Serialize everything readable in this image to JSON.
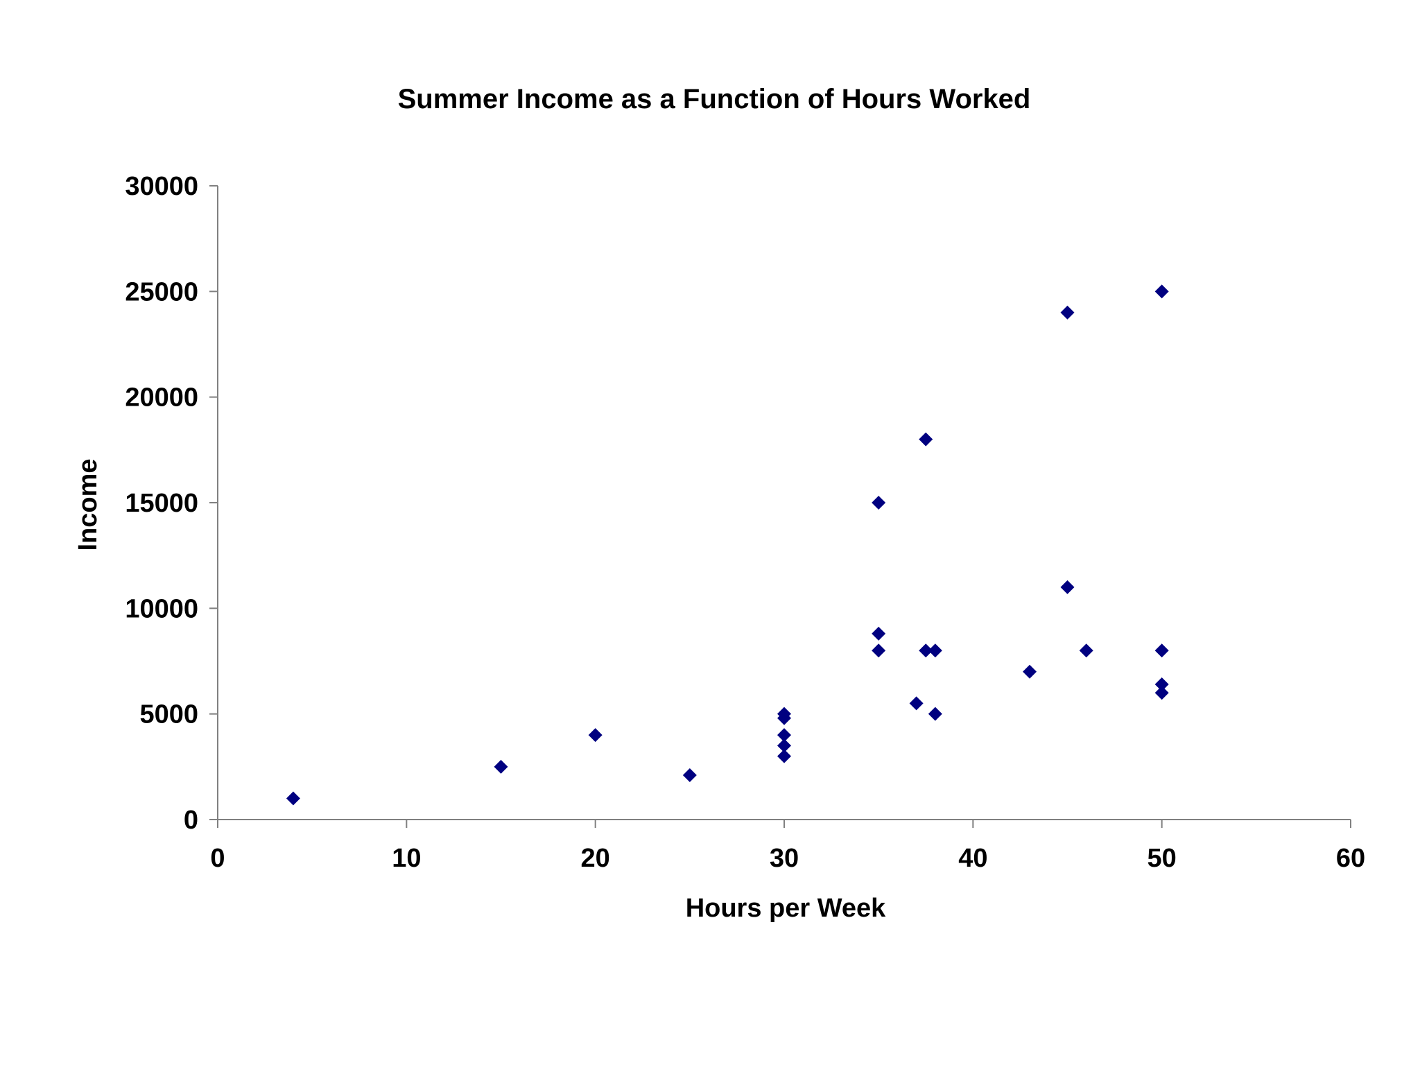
{
  "chart_data": {
    "type": "scatter",
    "title": "Summer Income as a Function of Hours Worked",
    "xlabel": "Hours per Week",
    "ylabel": "Income",
    "xlim": [
      0,
      60
    ],
    "ylim": [
      0,
      30000
    ],
    "xticks": [
      "0",
      "10",
      "20",
      "30",
      "40",
      "50",
      "60"
    ],
    "yticks": [
      "0",
      "5000",
      "10000",
      "15000",
      "20000",
      "25000",
      "30000"
    ],
    "grid": false,
    "legend": "none",
    "marker": "diamond",
    "marker_color": "#000080",
    "points": [
      {
        "x": 4,
        "y": 1000
      },
      {
        "x": 15,
        "y": 2500
      },
      {
        "x": 20,
        "y": 4000
      },
      {
        "x": 25,
        "y": 2100
      },
      {
        "x": 30,
        "y": 3000
      },
      {
        "x": 30,
        "y": 3500
      },
      {
        "x": 30,
        "y": 4000
      },
      {
        "x": 30,
        "y": 4800
      },
      {
        "x": 30,
        "y": 5000
      },
      {
        "x": 35,
        "y": 8000
      },
      {
        "x": 35,
        "y": 8800
      },
      {
        "x": 35,
        "y": 15000
      },
      {
        "x": 37,
        "y": 5500
      },
      {
        "x": 37.5,
        "y": 8000
      },
      {
        "x": 37.5,
        "y": 18000
      },
      {
        "x": 38,
        "y": 5000
      },
      {
        "x": 38,
        "y": 8000
      },
      {
        "x": 43,
        "y": 7000
      },
      {
        "x": 45,
        "y": 11000
      },
      {
        "x": 45,
        "y": 24000
      },
      {
        "x": 46,
        "y": 8000
      },
      {
        "x": 50,
        "y": 6000
      },
      {
        "x": 50,
        "y": 6400
      },
      {
        "x": 50,
        "y": 8000
      },
      {
        "x": 50,
        "y": 25000
      }
    ]
  }
}
